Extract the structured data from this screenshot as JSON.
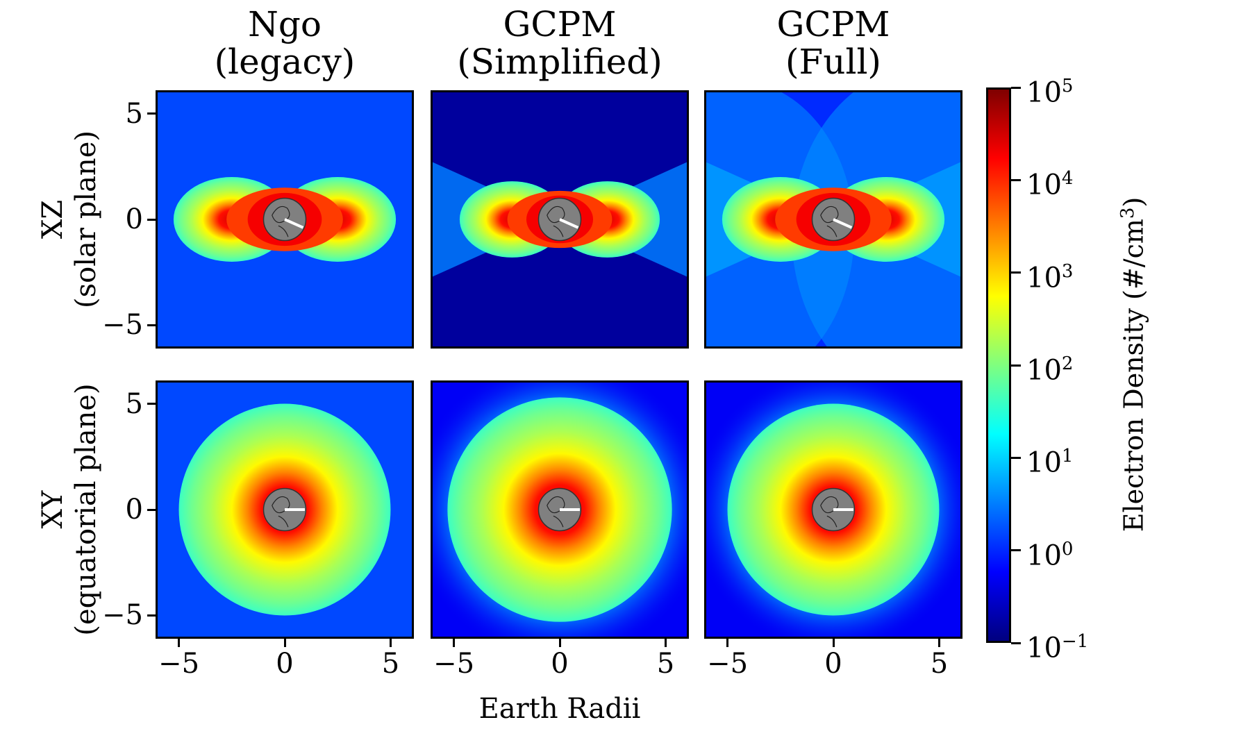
{
  "chart_data": {
    "type": "heatmap",
    "columns": [
      {
        "title_line1": "Ngo",
        "title_line2": "(legacy)"
      },
      {
        "title_line1": "GCPM",
        "title_line2": "(Simplified)"
      },
      {
        "title_line1": "GCPM",
        "title_line2": "(Full)"
      }
    ],
    "rows": [
      {
        "label_line1": "XZ",
        "label_line2": "(solar plane)"
      },
      {
        "label_line1": "XY",
        "label_line2": "(equatorial plane)"
      }
    ],
    "xlabel": "Earth Radii",
    "xlim": [
      -6.1,
      6.1
    ],
    "ylim": [
      -6.1,
      6.1
    ],
    "axis_ticks": [
      -5,
      0,
      5
    ],
    "axis_tick_labels": [
      "−5",
      "0",
      "5"
    ],
    "colorbar": {
      "label_prefix": "Electron Density (#/cm",
      "label_sup": "3",
      "label_suffix": ")",
      "scale": "log",
      "range": [
        0.1,
        100000
      ],
      "colormap": "jet",
      "ticks": [
        {
          "value": 0.1,
          "base": "10",
          "exp": "−1"
        },
        {
          "value": 1,
          "base": "10",
          "exp": "0"
        },
        {
          "value": 10,
          "base": "10",
          "exp": "1"
        },
        {
          "value": 100,
          "base": "10",
          "exp": "2"
        },
        {
          "value": 1000,
          "base": "10",
          "exp": "3"
        },
        {
          "value": 10000,
          "base": "10",
          "exp": "4"
        },
        {
          "value": 100000,
          "base": "10",
          "exp": "5"
        }
      ]
    },
    "panels": [
      {
        "row": "XZ",
        "model": "Ngo (legacy)",
        "background_density": 1.5,
        "plasmapause_radius": 5.0,
        "peak_density": 30000,
        "pattern": "lobes"
      },
      {
        "row": "XZ",
        "model": "GCPM (Simplified)",
        "background_density": 0.15,
        "plasmapause_radius": 4.5,
        "peak_density": 30000,
        "pattern": "lobes-wide"
      },
      {
        "row": "XZ",
        "model": "GCPM (Full)",
        "background_density": 1.0,
        "plasmapause_radius": 5.0,
        "peak_density": 30000,
        "pattern": "lobes-shells"
      },
      {
        "row": "XY",
        "model": "Ngo (legacy)",
        "background_density": 1.5,
        "plasmapause_radius": 5.0,
        "peak_density": 30000,
        "pattern": "disk"
      },
      {
        "row": "XY",
        "model": "GCPM (Simplified)",
        "background_density": 0.5,
        "plasmapause_radius": 5.3,
        "peak_density": 30000,
        "pattern": "disk-diffuse"
      },
      {
        "row": "XY",
        "model": "GCPM (Full)",
        "background_density": 0.5,
        "plasmapause_radius": 5.0,
        "peak_density": 30000,
        "pattern": "disk-diffuse"
      }
    ],
    "earth_marker": {
      "radius": 1.0,
      "fill": "#808080"
    }
  },
  "colors": {
    "jet_stops": [
      "#00007f",
      "#0000ff",
      "#007fff",
      "#00ffff",
      "#7fff7f",
      "#ffff00",
      "#ff7f00",
      "#ff0000",
      "#7f0000"
    ]
  }
}
